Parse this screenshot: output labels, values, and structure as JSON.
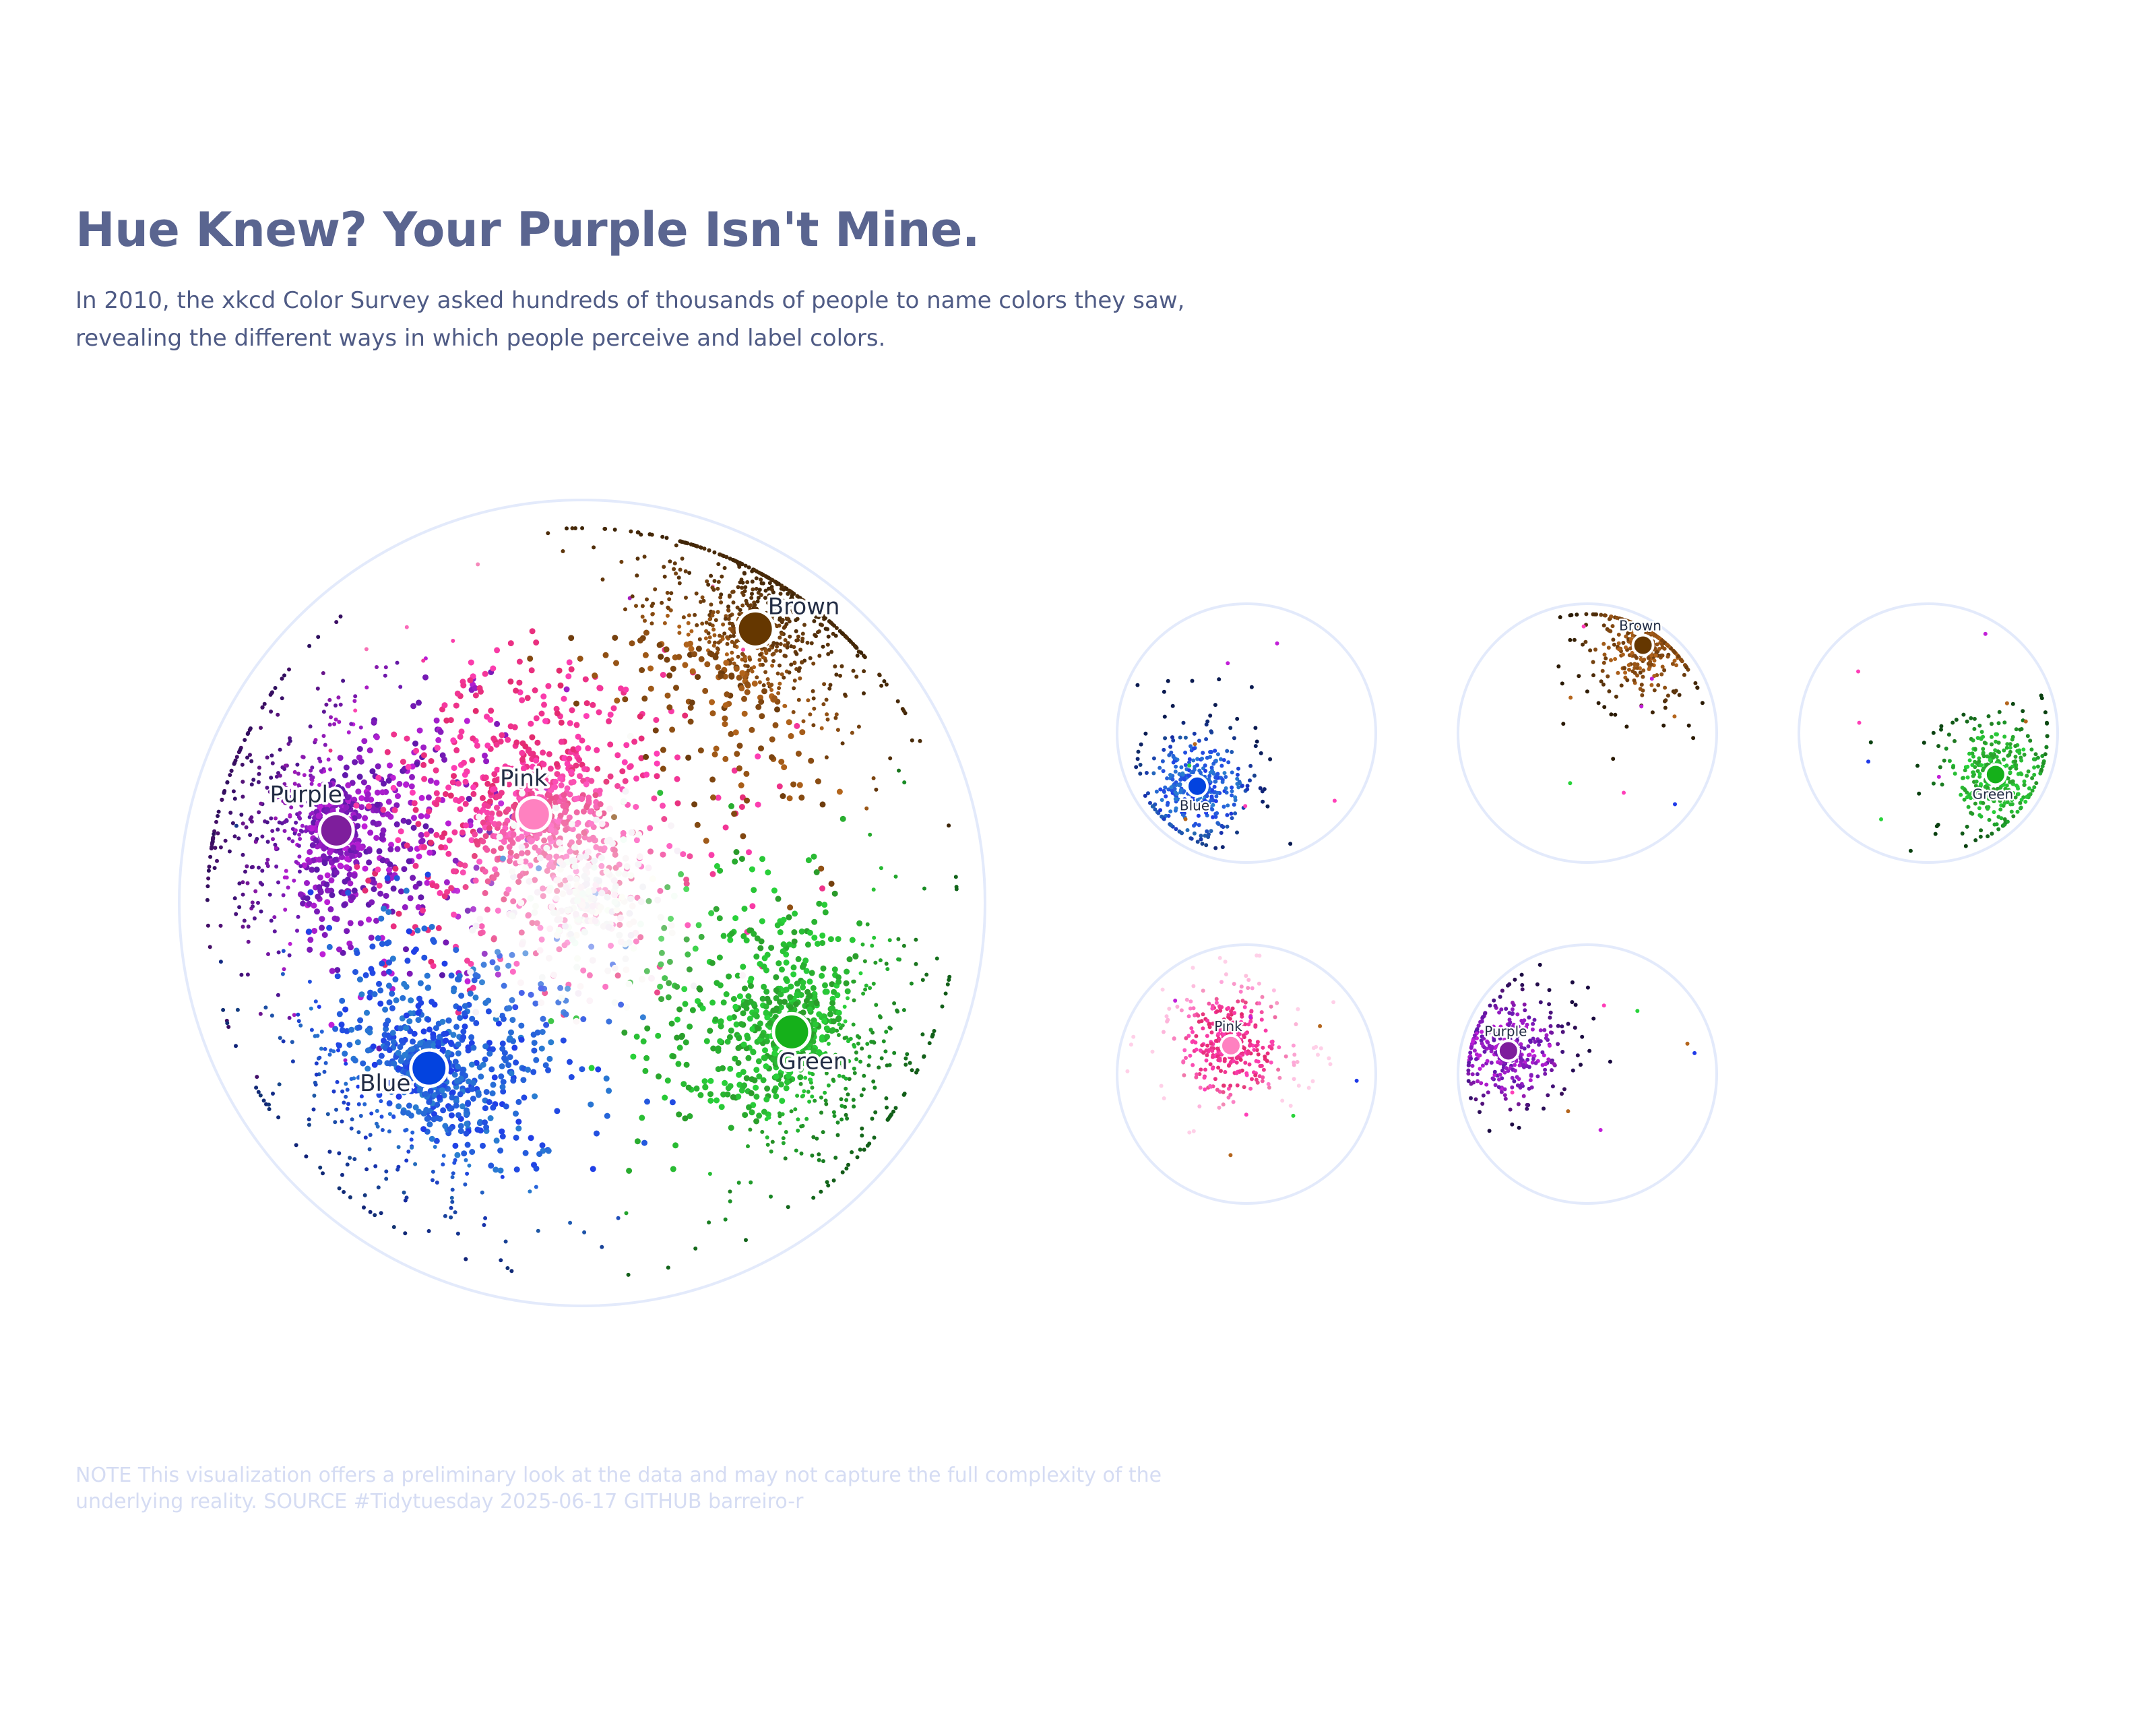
{
  "title": "Hue Knew? Your Purple Isn't Mine.",
  "subtitle": "In 2010, the xkcd Color Survey asked hundreds of thousands of people to name colors they saw, revealing the different ways in which people perceive and label colors.",
  "note": "NOTE This visualization offers a preliminary look at the data and may not capture the full complexity of the underlying reality. SOURCE #Tidytuesday 2025-06-17 GITHUB barreiro-r",
  "colors": {
    "title": "#5a6590",
    "subtitle": "#4f5b85",
    "note": "#d5dcf3",
    "circle_outline": "#e3eafb",
    "label_text": "#222c44"
  },
  "chart_data": [
    {
      "type": "scatter",
      "panel": "all colors",
      "title": "",
      "xlabel": "",
      "ylabel": "",
      "grid": false,
      "legend": "none",
      "description_of_points": "individual survey responses plotted as dots colored by the hex color shown",
      "groups": [
        {
          "name": "Purple",
          "centroid_color": "#7e1e9c",
          "x": -0.61,
          "y": 0.18
        },
        {
          "name": "Pink",
          "centroid_color": "#ff81c0",
          "x": -0.12,
          "y": 0.22
        },
        {
          "name": "Brown",
          "centroid_color": "#653700",
          "x": 0.43,
          "y": 0.68
        },
        {
          "name": "Blue",
          "centroid_color": "#0343df",
          "x": -0.38,
          "y": -0.41
        },
        {
          "name": "Green",
          "centroid_color": "#15b01a",
          "x": 0.52,
          "y": -0.32
        }
      ]
    },
    {
      "type": "scatter",
      "panel": "Blue",
      "label": "Blue",
      "centroid_color": "#0343df",
      "x": -0.38,
      "y": -0.41
    },
    {
      "type": "scatter",
      "panel": "Brown",
      "label": "Brown",
      "centroid_color": "#653700",
      "x": 0.43,
      "y": 0.68
    },
    {
      "type": "scatter",
      "panel": "Green",
      "label": "Green",
      "centroid_color": "#15b01a",
      "x": 0.52,
      "y": -0.32
    },
    {
      "type": "scatter",
      "panel": "Pink",
      "label": "Pink",
      "centroid_color": "#ff81c0",
      "x": -0.12,
      "y": 0.22
    },
    {
      "type": "scatter",
      "panel": "Purple",
      "label": "Purple",
      "centroid_color": "#7e1e9c",
      "x": -0.61,
      "y": 0.18
    }
  ]
}
